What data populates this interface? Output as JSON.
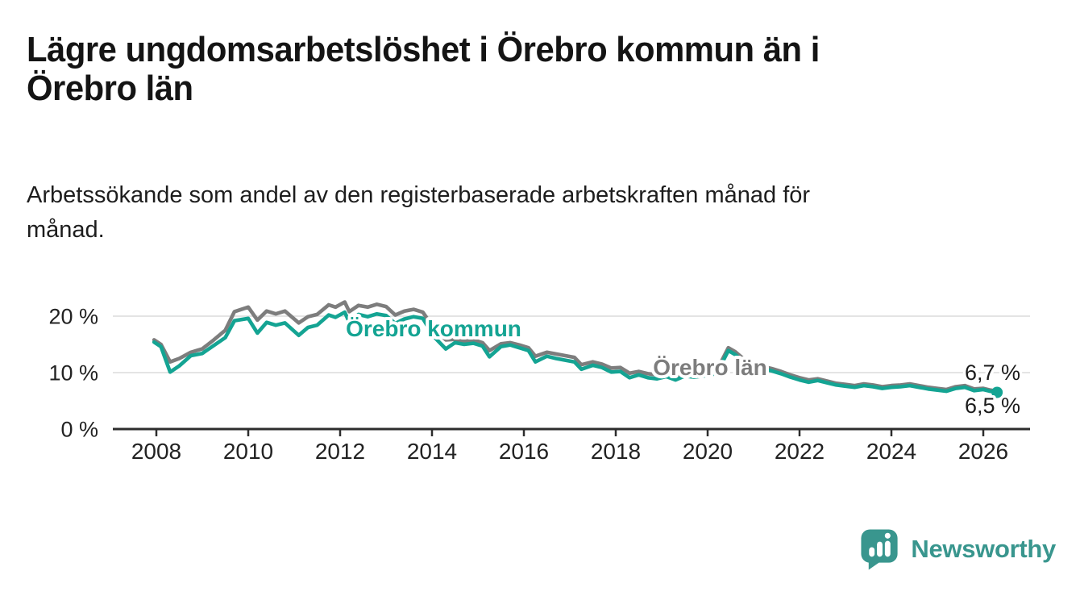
{
  "header": {
    "title_lines": [
      "Lägre ungdomsarbetslöshet i Örebro kommun än i",
      "Örebro län"
    ],
    "subtitle_lines": [
      "Arbetssökande som andel av den registerbaserade arbetskraften månad för",
      "månad."
    ]
  },
  "branding": {
    "logo_text": "Newsworthy",
    "logo_icon": "speech-bubble-with-bar-chart"
  },
  "colors": {
    "teal": "#14a493",
    "gray": "#7d7d7d",
    "grid": "#dcdcdc",
    "axis": "#2d2d2d",
    "tick_text": "#222222",
    "end_label_text": "#1c1c1c",
    "logo_teal": "#39968e",
    "label_halo": "#ffffff"
  },
  "chart_data": {
    "type": "line",
    "title": "Lägre ungdomsarbetslöshet i Örebro kommun än i Örebro län",
    "subtitle": "Arbetssökande som andel av den registerbaserade arbetskraften månad för månad.",
    "xlabel": "",
    "ylabel": "",
    "grid": true,
    "legend_position": "inline-labels",
    "xlim": [
      2007.9,
      2027.2
    ],
    "ylim": [
      0,
      24
    ],
    "xticks": [
      2008,
      2010,
      2012,
      2014,
      2016,
      2018,
      2020,
      2022,
      2024,
      2026
    ],
    "yticks": [
      {
        "value": 0,
        "label": "0 %"
      },
      {
        "value": 10,
        "label": "10 %"
      },
      {
        "value": 20,
        "label": "20 %"
      }
    ],
    "x": [
      2007.95,
      2008.1,
      2008.3,
      2008.5,
      2008.75,
      2009.0,
      2009.25,
      2009.5,
      2009.7,
      2010.0,
      2010.2,
      2010.4,
      2010.6,
      2010.8,
      2011.1,
      2011.3,
      2011.5,
      2011.75,
      2011.9,
      2012.1,
      2012.2,
      2012.4,
      2012.6,
      2012.8,
      2013.0,
      2013.2,
      2013.4,
      2013.6,
      2013.8,
      2014.05,
      2014.3,
      2014.5,
      2014.7,
      2014.9,
      2015.1,
      2015.25,
      2015.5,
      2015.7,
      2015.9,
      2016.1,
      2016.25,
      2016.5,
      2016.7,
      2016.9,
      2017.1,
      2017.25,
      2017.5,
      2017.7,
      2017.9,
      2018.1,
      2018.3,
      2018.5,
      2018.7,
      2018.9,
      2019.1,
      2019.3,
      2019.5,
      2019.7,
      2019.9,
      2020.1,
      2020.3,
      2020.45,
      2020.6,
      2020.8,
      2021.0,
      2021.2,
      2021.4,
      2021.6,
      2021.8,
      2022.0,
      2022.2,
      2022.4,
      2022.6,
      2022.8,
      2023.0,
      2023.2,
      2023.4,
      2023.6,
      2023.8,
      2024.0,
      2024.2,
      2024.4,
      2024.6,
      2024.8,
      2025.0,
      2025.2,
      2025.4,
      2025.6,
      2025.8,
      2026.0,
      2026.15,
      2026.3
    ],
    "series": [
      {
        "id": "orebro-lan",
        "label": "Örebro län",
        "color": "#7d7d7d",
        "end_label": "6,7 %",
        "end_value": 6.7,
        "end_marker": false,
        "values": [
          15.8,
          15.0,
          11.9,
          12.5,
          13.6,
          14.2,
          15.8,
          17.5,
          20.8,
          21.6,
          19.3,
          20.9,
          20.4,
          20.9,
          18.8,
          19.9,
          20.3,
          22.0,
          21.6,
          22.5,
          20.8,
          21.9,
          21.6,
          22.1,
          21.7,
          20.2,
          20.9,
          21.2,
          20.7,
          17.8,
          15.8,
          15.9,
          15.6,
          15.8,
          15.3,
          13.9,
          15.1,
          15.3,
          14.9,
          14.4,
          12.9,
          13.6,
          13.3,
          13.0,
          12.7,
          11.4,
          11.9,
          11.5,
          10.8,
          10.9,
          9.9,
          10.2,
          9.8,
          9.6,
          9.9,
          9.4,
          10.0,
          9.8,
          10.0,
          10.2,
          12.0,
          14.4,
          13.7,
          12.3,
          11.7,
          11.1,
          10.7,
          10.2,
          9.6,
          9.1,
          8.7,
          8.9,
          8.5,
          8.1,
          7.9,
          7.7,
          8.0,
          7.8,
          7.5,
          7.7,
          7.8,
          8.0,
          7.7,
          7.4,
          7.2,
          7.0,
          7.5,
          7.7,
          7.1,
          7.2,
          6.9,
          6.7
        ]
      },
      {
        "id": "orebro-kommun",
        "label": "Örebro kommun",
        "color": "#14a493",
        "end_label": "6,5 %",
        "end_value": 6.5,
        "end_marker": true,
        "values": [
          15.4,
          14.6,
          10.1,
          11.2,
          13.0,
          13.4,
          14.8,
          16.2,
          19.2,
          19.6,
          17.0,
          18.9,
          18.4,
          18.8,
          16.6,
          18.0,
          18.4,
          20.2,
          19.8,
          20.7,
          18.9,
          20.3,
          19.9,
          20.4,
          20.1,
          18.7,
          19.5,
          19.9,
          19.6,
          16.3,
          14.2,
          15.3,
          15.0,
          15.2,
          14.7,
          12.8,
          14.6,
          14.9,
          14.4,
          13.9,
          11.9,
          12.9,
          12.5,
          12.2,
          11.9,
          10.6,
          11.3,
          10.9,
          10.1,
          10.2,
          9.1,
          9.6,
          9.1,
          8.9,
          9.3,
          8.7,
          9.4,
          9.2,
          9.4,
          9.6,
          11.5,
          13.9,
          13.2,
          11.8,
          11.2,
          10.7,
          10.3,
          9.8,
          9.2,
          8.7,
          8.3,
          8.6,
          8.2,
          7.8,
          7.6,
          7.4,
          7.7,
          7.5,
          7.2,
          7.4,
          7.5,
          7.7,
          7.4,
          7.1,
          6.9,
          6.7,
          7.2,
          7.4,
          6.8,
          7.0,
          6.7,
          6.5
        ]
      }
    ]
  }
}
